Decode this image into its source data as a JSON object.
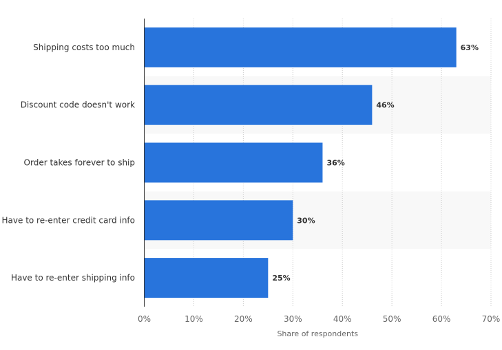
{
  "chart_data": {
    "type": "bar",
    "orientation": "horizontal",
    "categories": [
      "Shipping costs too much",
      "Discount code doesn't work",
      "Order takes forever to ship",
      "Have to re-enter credit card info",
      "Have to re-enter shipping info"
    ],
    "values": [
      63,
      46,
      36,
      30,
      25
    ],
    "value_labels": [
      "63%",
      "46%",
      "36%",
      "30%",
      "25%"
    ],
    "xlabel": "Share of respondents",
    "ylabel": "",
    "title": "",
    "xlim": [
      0,
      70
    ],
    "x_ticks": [
      0,
      10,
      20,
      30,
      40,
      50,
      60,
      70
    ],
    "x_tick_labels": [
      "0%",
      "10%",
      "20%",
      "30%",
      "40%",
      "50%",
      "60%",
      "70%"
    ],
    "grid": "vertical dotted",
    "legend": "none",
    "colors": {
      "bar": "#2874dc",
      "axis": "#333333",
      "grid": "#cccccc",
      "band": "#f8f8f8",
      "category_text": "#333333",
      "value_text": "#333333",
      "tick_text": "#666666"
    }
  }
}
